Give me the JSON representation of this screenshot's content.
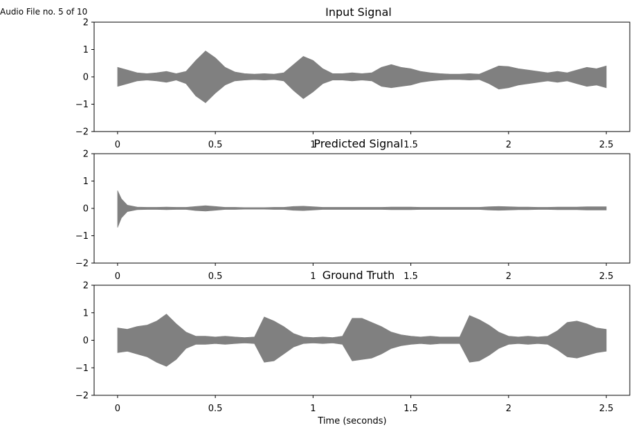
{
  "figure": {
    "corner_label": "Audio File no. 5 of 10"
  },
  "colors": {
    "waveform": "#808080",
    "axes": "#000000",
    "background": "#ffffff"
  },
  "chart_data": [
    {
      "type": "area",
      "title": "Input Signal",
      "xlabel": "",
      "ylabel": "",
      "xlim": [
        -0.12,
        2.62
      ],
      "ylim": [
        -2,
        2
      ],
      "xticks": [
        0,
        0.5,
        1,
        1.5,
        2,
        2.5
      ],
      "xtick_labels": [
        "0",
        "0.5",
        "1",
        "1.5",
        "2",
        "2.5"
      ],
      "yticks": [
        -2,
        -1,
        0,
        1,
        2
      ],
      "ytick_labels": [
        "−2",
        "−1",
        "0",
        "1",
        "2"
      ],
      "grid": false,
      "series": [
        {
          "x": [
            0,
            0.05,
            0.1,
            0.15,
            0.2,
            0.25,
            0.3,
            0.35,
            0.4,
            0.45,
            0.5,
            0.55,
            0.6,
            0.65,
            0.7,
            0.75,
            0.8,
            0.85,
            0.9,
            0.95,
            1.0,
            1.05,
            1.1,
            1.15,
            1.2,
            1.25,
            1.3,
            1.35,
            1.4,
            1.45,
            1.5,
            1.55,
            1.6,
            1.65,
            1.7,
            1.75,
            1.8,
            1.85,
            1.9,
            1.95,
            2.0,
            2.05,
            2.1,
            2.15,
            2.2,
            2.25,
            2.3,
            2.35,
            2.4,
            2.45,
            2.5
          ],
          "upper": [
            0.35,
            0.25,
            0.15,
            0.12,
            0.15,
            0.2,
            0.12,
            0.2,
            0.6,
            0.95,
            0.7,
            0.35,
            0.18,
            0.12,
            0.1,
            0.12,
            0.1,
            0.15,
            0.45,
            0.75,
            0.6,
            0.3,
            0.12,
            0.12,
            0.15,
            0.12,
            0.15,
            0.35,
            0.45,
            0.35,
            0.3,
            0.2,
            0.15,
            0.12,
            0.1,
            0.1,
            0.12,
            0.1,
            0.25,
            0.4,
            0.38,
            0.3,
            0.25,
            0.2,
            0.15,
            0.2,
            0.15,
            0.25,
            0.35,
            0.3,
            0.4
          ],
          "lower": [
            -0.35,
            -0.25,
            -0.15,
            -0.12,
            -0.15,
            -0.2,
            -0.12,
            -0.25,
            -0.7,
            -0.95,
            -0.6,
            -0.3,
            -0.15,
            -0.12,
            -0.1,
            -0.12,
            -0.1,
            -0.15,
            -0.5,
            -0.8,
            -0.55,
            -0.25,
            -0.12,
            -0.12,
            -0.15,
            -0.12,
            -0.15,
            -0.35,
            -0.4,
            -0.35,
            -0.3,
            -0.2,
            -0.15,
            -0.12,
            -0.1,
            -0.1,
            -0.12,
            -0.1,
            -0.25,
            -0.45,
            -0.4,
            -0.3,
            -0.25,
            -0.2,
            -0.15,
            -0.2,
            -0.15,
            -0.25,
            -0.35,
            -0.3,
            -0.4
          ]
        }
      ]
    },
    {
      "type": "area",
      "title": "Predicted Signal",
      "xlabel": "",
      "ylabel": "",
      "xlim": [
        -0.12,
        2.62
      ],
      "ylim": [
        -2,
        2
      ],
      "xticks": [
        0,
        0.5,
        1,
        1.5,
        2,
        2.5
      ],
      "xtick_labels": [
        "0",
        "0.5",
        "1",
        "1.5",
        "2",
        "2.5"
      ],
      "yticks": [
        -2,
        -1,
        0,
        1,
        2
      ],
      "ytick_labels": [
        "−2",
        "−1",
        "0",
        "1",
        "2"
      ],
      "grid": false,
      "series": [
        {
          "x": [
            0,
            0.02,
            0.05,
            0.1,
            0.15,
            0.2,
            0.25,
            0.3,
            0.35,
            0.4,
            0.45,
            0.5,
            0.55,
            0.6,
            0.65,
            0.7,
            0.75,
            0.8,
            0.85,
            0.9,
            0.95,
            1.0,
            1.05,
            1.1,
            1.15,
            1.2,
            1.25,
            1.3,
            1.35,
            1.4,
            1.45,
            1.5,
            1.55,
            1.6,
            1.65,
            1.7,
            1.75,
            1.8,
            1.85,
            1.9,
            1.95,
            2.0,
            2.05,
            2.1,
            2.15,
            2.2,
            2.25,
            2.3,
            2.35,
            2.4,
            2.45,
            2.5
          ],
          "upper": [
            0.65,
            0.35,
            0.12,
            0.05,
            0.04,
            0.04,
            0.05,
            0.04,
            0.04,
            0.07,
            0.1,
            0.07,
            0.04,
            0.04,
            0.03,
            0.03,
            0.03,
            0.04,
            0.04,
            0.07,
            0.08,
            0.06,
            0.04,
            0.04,
            0.04,
            0.04,
            0.04,
            0.04,
            0.04,
            0.05,
            0.05,
            0.05,
            0.04,
            0.04,
            0.04,
            0.04,
            0.04,
            0.04,
            0.04,
            0.06,
            0.07,
            0.06,
            0.05,
            0.05,
            0.04,
            0.04,
            0.05,
            0.05,
            0.05,
            0.06,
            0.06,
            0.06
          ],
          "lower": [
            -0.7,
            -0.35,
            -0.12,
            -0.05,
            -0.04,
            -0.04,
            -0.05,
            -0.04,
            -0.04,
            -0.08,
            -0.1,
            -0.07,
            -0.04,
            -0.04,
            -0.03,
            -0.03,
            -0.03,
            -0.04,
            -0.04,
            -0.07,
            -0.08,
            -0.06,
            -0.04,
            -0.04,
            -0.04,
            -0.04,
            -0.04,
            -0.04,
            -0.04,
            -0.05,
            -0.05,
            -0.05,
            -0.04,
            -0.04,
            -0.04,
            -0.04,
            -0.04,
            -0.04,
            -0.04,
            -0.06,
            -0.07,
            -0.06,
            -0.05,
            -0.05,
            -0.04,
            -0.04,
            -0.05,
            -0.05,
            -0.05,
            -0.06,
            -0.06,
            -0.06
          ]
        }
      ]
    },
    {
      "type": "area",
      "title": "Ground Truth",
      "xlabel": "Time (seconds)",
      "ylabel": "",
      "xlim": [
        -0.12,
        2.62
      ],
      "ylim": [
        -2,
        2
      ],
      "xticks": [
        0,
        0.5,
        1,
        1.5,
        2,
        2.5
      ],
      "xtick_labels": [
        "0",
        "0.5",
        "1",
        "1.5",
        "2",
        "2.5"
      ],
      "yticks": [
        -2,
        -1,
        0,
        1,
        2
      ],
      "ytick_labels": [
        "−2",
        "−1",
        "0",
        "1",
        "2"
      ],
      "grid": false,
      "series": [
        {
          "x": [
            0,
            0.05,
            0.1,
            0.15,
            0.2,
            0.25,
            0.3,
            0.35,
            0.4,
            0.45,
            0.5,
            0.55,
            0.6,
            0.65,
            0.7,
            0.75,
            0.8,
            0.85,
            0.9,
            0.95,
            1.0,
            1.05,
            1.1,
            1.15,
            1.2,
            1.25,
            1.3,
            1.35,
            1.4,
            1.45,
            1.5,
            1.55,
            1.6,
            1.65,
            1.7,
            1.75,
            1.8,
            1.85,
            1.9,
            1.95,
            2.0,
            2.05,
            2.1,
            2.15,
            2.2,
            2.25,
            2.3,
            2.35,
            2.4,
            2.45,
            2.5
          ],
          "upper": [
            0.45,
            0.4,
            0.5,
            0.55,
            0.7,
            0.95,
            0.6,
            0.3,
            0.15,
            0.15,
            0.12,
            0.15,
            0.12,
            0.1,
            0.12,
            0.85,
            0.7,
            0.5,
            0.25,
            0.12,
            0.1,
            0.12,
            0.1,
            0.15,
            0.8,
            0.8,
            0.65,
            0.5,
            0.3,
            0.2,
            0.15,
            0.12,
            0.15,
            0.12,
            0.12,
            0.12,
            0.9,
            0.75,
            0.55,
            0.3,
            0.15,
            0.12,
            0.15,
            0.12,
            0.15,
            0.35,
            0.65,
            0.7,
            0.6,
            0.45,
            0.4
          ],
          "lower": [
            -0.45,
            -0.4,
            -0.5,
            -0.6,
            -0.8,
            -0.95,
            -0.7,
            -0.3,
            -0.15,
            -0.15,
            -0.12,
            -0.15,
            -0.12,
            -0.1,
            -0.12,
            -0.8,
            -0.75,
            -0.5,
            -0.25,
            -0.12,
            -0.1,
            -0.12,
            -0.1,
            -0.15,
            -0.75,
            -0.7,
            -0.65,
            -0.5,
            -0.3,
            -0.2,
            -0.15,
            -0.12,
            -0.15,
            -0.12,
            -0.12,
            -0.12,
            -0.8,
            -0.75,
            -0.55,
            -0.3,
            -0.15,
            -0.12,
            -0.15,
            -0.12,
            -0.15,
            -0.35,
            -0.6,
            -0.65,
            -0.55,
            -0.45,
            -0.4
          ]
        }
      ]
    }
  ]
}
